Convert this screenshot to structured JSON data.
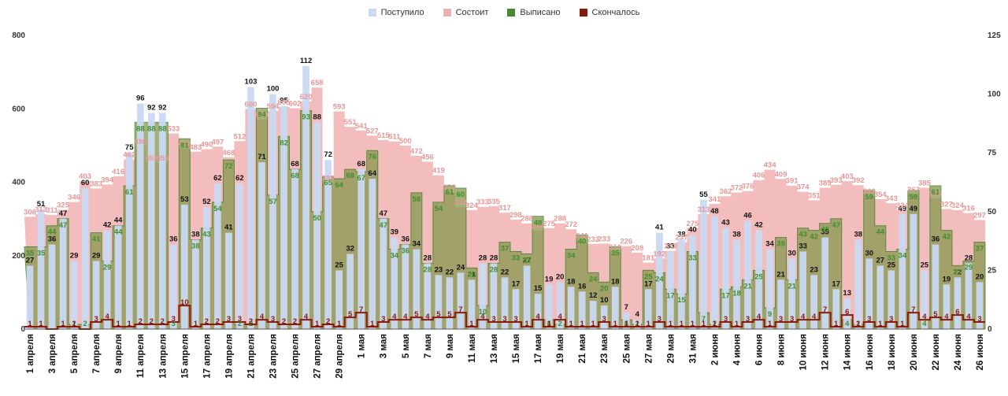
{
  "colors": {
    "admitted": "#c9d9f2",
    "remaining": "#f2b1b1",
    "discharged": "#8a9a52",
    "discharged_label": "#3f8f2b",
    "died": "#8b1a0a",
    "remaining_label": "#e79696"
  },
  "legend": [
    {
      "label": "Поступило",
      "color": "#c9d9f2"
    },
    {
      "label": "Состоит",
      "color": "#f2b1b1"
    },
    {
      "label": "Выписано",
      "color": "#4a8a2c"
    },
    {
      "label": "Скончалось",
      "color": "#8b1a0a"
    }
  ],
  "chart_data": {
    "type": "bar",
    "left_axis": {
      "min": 0,
      "max": 800,
      "ticks": [
        "0",
        "200",
        "400",
        "600",
        "800"
      ]
    },
    "right_axis": {
      "min": 0,
      "max": 125,
      "ticks": [
        "0",
        "25",
        "50",
        "75",
        "100",
        "125"
      ]
    },
    "x_tick_labels": [
      "1 апреля",
      "3 апреля",
      "5 апреля",
      "7 апреля",
      "9 апреля",
      "11 апреля",
      "13 апреля",
      "15 апреля",
      "17 апреля",
      "19 апреля",
      "21 апреля",
      "23 апреля",
      "25 апреля",
      "27 апреля",
      "29 апреля",
      "1 мая",
      "3 мая",
      "5 мая",
      "7 мая",
      "9 мая",
      "11 мая",
      "13 мая",
      "15 мая",
      "17 мая",
      "19 мая",
      "21 мая",
      "23 мая",
      "25 мая",
      "27 мая",
      "29 мая",
      "31 мая",
      "2 июня",
      "4 июня",
      "6 июня",
      "8 июня",
      "10 июня",
      "12 июня",
      "14 июня",
      "16 июня",
      "18 июня",
      "20 июня",
      "22 июня",
      "24 июня",
      "26 июня"
    ],
    "series": [
      {
        "name": "Поступило",
        "axis": "right",
        "values": [
          27,
          51,
          36,
          47,
          29,
          60,
          29,
          42,
          44,
          75,
          96,
          92,
          92,
          36,
          53,
          38,
          52,
          62,
          41,
          62,
          103,
          71,
          100,
          95,
          68,
          112,
          88,
          72,
          25,
          32,
          68,
          64,
          47,
          39,
          36,
          34,
          28,
          23,
          22,
          24,
          21,
          28,
          28,
          22,
          17,
          27,
          15,
          19,
          20,
          18,
          16,
          12,
          10,
          18,
          7,
          4,
          17,
          41,
          33,
          38,
          40,
          55,
          48,
          43,
          38,
          46,
          42,
          34,
          21,
          30,
          33,
          23,
          39,
          17,
          13,
          38,
          30,
          27,
          25,
          49,
          49,
          25,
          36,
          19,
          22,
          28,
          20
        ]
      },
      {
        "name": "Состоит",
        "axis": "left",
        "values": [
          306,
          313,
          311,
          325,
          346,
          403,
          383,
          394,
          416,
          462,
          498,
          453,
          453,
          533,
          492,
          483,
          490,
          497,
          468,
          512,
          600,
          570,
          594,
          605,
          602,
          620,
          658,
          398,
          593,
          551,
          541,
          527,
          515,
          511,
          500,
          472,
          456,
          419,
          373,
          332,
          324,
          333,
          335,
          317,
          298,
          288,
          268,
          275,
          288,
          272,
          241,
          232,
          233,
          210,
          226,
          208,
          181,
          192,
          213,
          237,
          275,
          313,
          341,
          362,
          372,
          376,
          406,
          434,
          409,
          391,
          374,
          351,
          385,
          393,
          403,
          392,
          363,
          354,
          343,
          324,
          367,
          385,
          356,
          327,
          324,
          316,
          297
        ]
      },
      {
        "name": "Выписано",
        "axis": "right",
        "values": [
          35,
          35,
          44,
          47,
          2,
          2,
          41,
          29,
          44,
          61,
          88,
          88,
          88,
          3,
          81,
          38,
          43,
          54,
          72,
          2,
          2,
          94,
          57,
          82,
          68,
          93,
          50,
          65,
          64,
          68,
          67,
          76,
          47,
          34,
          36,
          58,
          28,
          54,
          61,
          60,
          26,
          10,
          28,
          37,
          33,
          32,
          48,
          4,
          2,
          34,
          40,
          24,
          20,
          35,
          4,
          2,
          25,
          24,
          17,
          15,
          33,
          7,
          2,
          17,
          18,
          21,
          25,
          9,
          39,
          21,
          43,
          42,
          45,
          47,
          4,
          2,
          59,
          44,
          33,
          34,
          59,
          4,
          61,
          42,
          27,
          29,
          37
        ]
      },
      {
        "name": "Скончалось",
        "axis": "right",
        "values": [
          1,
          1,
          0,
          1,
          1,
          0,
          3,
          4,
          1,
          1,
          2,
          2,
          2,
          3,
          10,
          1,
          2,
          2,
          3,
          3,
          2,
          4,
          3,
          2,
          2,
          4,
          1,
          2,
          1,
          5,
          7,
          1,
          3,
          4,
          4,
          5,
          4,
          5,
          5,
          7,
          1,
          4,
          3,
          3,
          3,
          1,
          4,
          1,
          4,
          1,
          1,
          1,
          3,
          1,
          1,
          1,
          1,
          3,
          1,
          1,
          1,
          1,
          1,
          3,
          1,
          3,
          4,
          1,
          3,
          3,
          4,
          4,
          7,
          1,
          6,
          1,
          3,
          1,
          3,
          1,
          7,
          4,
          5,
          4,
          6,
          4,
          3
        ]
      }
    ]
  }
}
